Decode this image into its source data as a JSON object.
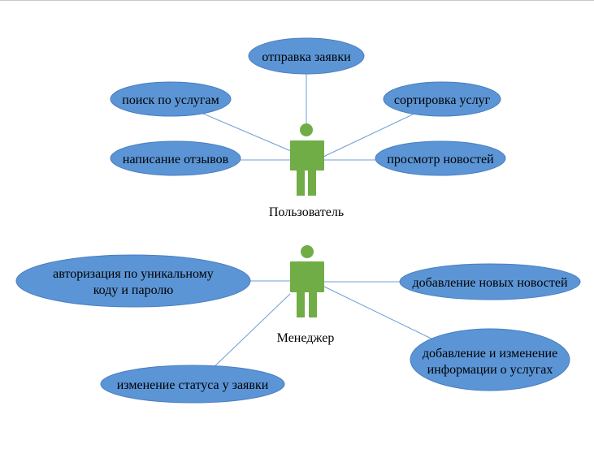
{
  "colors": {
    "ellipse_fill": "#5b95d6",
    "ellipse_stroke": "#4a7fbf",
    "actor": "#70ad47",
    "connector": "#6d9ed6"
  },
  "actors": {
    "user": {
      "label": "Пользователь",
      "icon": "person-icon",
      "use_cases": [
        "отправка заявки",
        "поиск по услугам",
        "сортировка услуг",
        "написание отзывов",
        "просмотр новостей"
      ]
    },
    "manager": {
      "label": "Менеджер",
      "icon": "person-icon",
      "use_cases": [
        [
          "авторизация по уникальному",
          "коду и паролю"
        ],
        "добавление новых новостей",
        [
          "добавление и изменение",
          "информации о услугах"
        ],
        "изменение статуса у заявки"
      ]
    }
  }
}
